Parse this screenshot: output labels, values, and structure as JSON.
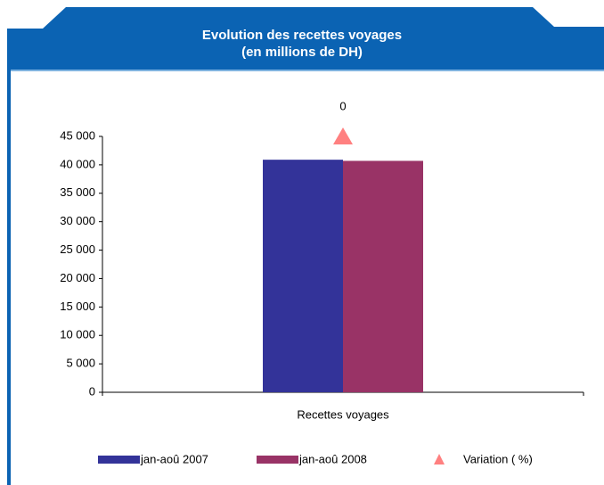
{
  "chart_data": {
    "type": "bar",
    "title": [
      "Evolution des recettes voyages",
      "(en millions de DH)"
    ],
    "categories": [
      "Recettes voyages"
    ],
    "series": [
      {
        "name": "jan-aoû 2007",
        "color": "#333399",
        "values": [
          40900
        ]
      },
      {
        "name": "jan-aoû 2008",
        "color": "#993366",
        "values": [
          40700
        ]
      },
      {
        "name": "Variation ( %)",
        "color": "#ff8080",
        "type": "marker",
        "axis": "y2",
        "values": [
          0
        ]
      }
    ],
    "ylim": [
      0,
      45000
    ],
    "yticks": [
      {
        "value": 0,
        "label": "0"
      },
      {
        "value": 5000,
        "label": "5 000"
      },
      {
        "value": 10000,
        "label": "10 000"
      },
      {
        "value": 15000,
        "label": "15 000"
      },
      {
        "value": 20000,
        "label": "20 000"
      },
      {
        "value": 25000,
        "label": "25 000"
      },
      {
        "value": 30000,
        "label": "30 000"
      },
      {
        "value": 35000,
        "label": "35 000"
      },
      {
        "value": 40000,
        "label": "40 000"
      },
      {
        "value": 45000,
        "label": "45 000"
      }
    ],
    "y2lim": [
      -1,
      0
    ],
    "legend": "bottom"
  }
}
